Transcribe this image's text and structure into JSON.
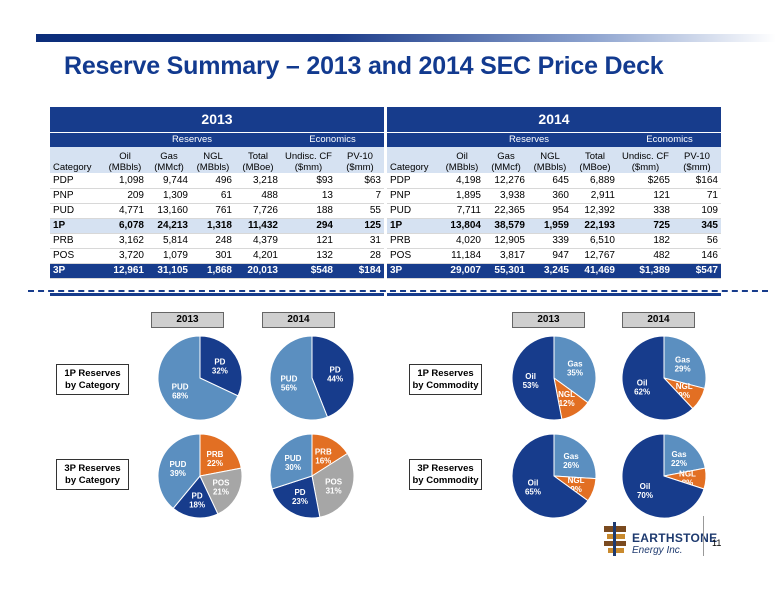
{
  "title": "Reserve Summary – 2013 and 2014 SEC Price Deck",
  "tables": [
    {
      "year": "2013",
      "group_reserves": "Reserves",
      "group_economics": "Economics",
      "headers": [
        [
          "",
          "Category"
        ],
        [
          "Oil",
          "(MBbls)"
        ],
        [
          "Gas",
          "(MMcf)"
        ],
        [
          "NGL",
          "(MBbls)"
        ],
        [
          "Total",
          "(MBoe)"
        ],
        [
          "Undisc. CF",
          "($mm)"
        ],
        [
          "PV-10",
          "($mm)"
        ]
      ],
      "rows": [
        [
          "PDP",
          "1,098",
          "9,744",
          "496",
          "3,218",
          "$93",
          "$63"
        ],
        [
          "PNP",
          "209",
          "1,309",
          "61",
          "488",
          "13",
          "7"
        ],
        [
          "PUD",
          "4,771",
          "13,160",
          "761",
          "7,726",
          "188",
          "55"
        ],
        [
          "1P",
          "6,078",
          "24,213",
          "1,318",
          "11,432",
          "294",
          "125"
        ],
        [
          "PRB",
          "3,162",
          "5,814",
          "248",
          "4,379",
          "121",
          "31"
        ],
        [
          "POS",
          "3,720",
          "1,079",
          "301",
          "4,201",
          "132",
          "28"
        ],
        [
          "3P",
          "12,961",
          "31,105",
          "1,868",
          "20,013",
          "$548",
          "$184"
        ]
      ]
    },
    {
      "year": "2014",
      "group_reserves": "Reserves",
      "group_economics": "Economics",
      "headers": [
        [
          "",
          "Category"
        ],
        [
          "Oil",
          "(MBbls)"
        ],
        [
          "Gas",
          "(MMcf)"
        ],
        [
          "NGL",
          "(MBbls)"
        ],
        [
          "Total",
          "(MBoe)"
        ],
        [
          "Undisc. CF",
          "($mm)"
        ],
        [
          "PV-10",
          "($mm)"
        ]
      ],
      "rows": [
        [
          "PDP",
          "4,198",
          "12,276",
          "645",
          "6,889",
          "$265",
          "$164"
        ],
        [
          "PNP",
          "1,895",
          "3,938",
          "360",
          "2,911",
          "121",
          "71"
        ],
        [
          "PUD",
          "7,711",
          "22,365",
          "954",
          "12,392",
          "338",
          "109"
        ],
        [
          "1P",
          "13,804",
          "38,579",
          "1,959",
          "22,193",
          "725",
          "345"
        ],
        [
          "PRB",
          "4,020",
          "12,905",
          "339",
          "6,510",
          "182",
          "56"
        ],
        [
          "POS",
          "11,184",
          "3,817",
          "947",
          "12,767",
          "482",
          "146"
        ],
        [
          "3P",
          "29,007",
          "55,301",
          "3,245",
          "41,469",
          "$1,389",
          "$547"
        ]
      ]
    }
  ],
  "year_labels": [
    "2013",
    "2014",
    "2013",
    "2014"
  ],
  "side_labels": [
    [
      "1P Reserves",
      "by Category"
    ],
    [
      "3P Reserves",
      "by Category"
    ],
    [
      "1P Reserves",
      "by Commodity"
    ],
    [
      "3P Reserves",
      "by Commodity"
    ]
  ],
  "colors": {
    "navy": "#173c8c",
    "steel": "#5b8fc0",
    "orange": "#e26f23",
    "gray": "#a6a6a6"
  },
  "chart_data": [
    {
      "type": "pie",
      "title": "",
      "group": "1P Reserves by Category",
      "year": "2013",
      "slices": [
        {
          "label": "PD",
          "value": 32,
          "pct": "32%",
          "color": "#173c8c"
        },
        {
          "label": "PUD",
          "value": 68,
          "pct": "68%",
          "color": "#5b8fc0"
        }
      ]
    },
    {
      "type": "pie",
      "title": "",
      "group": "1P Reserves by Category",
      "year": "2014",
      "slices": [
        {
          "label": "PD",
          "value": 44,
          "pct": "44%",
          "color": "#173c8c"
        },
        {
          "label": "PUD",
          "value": 56,
          "pct": "56%",
          "color": "#5b8fc0"
        }
      ]
    },
    {
      "type": "pie",
      "title": "",
      "group": "3P Reserves by Category",
      "year": "2013",
      "slices": [
        {
          "label": "PRB",
          "value": 22,
          "pct": "22%",
          "color": "#e26f23"
        },
        {
          "label": "POS",
          "value": 21,
          "pct": "21%",
          "color": "#a6a6a6"
        },
        {
          "label": "PD",
          "value": 18,
          "pct": "18%",
          "color": "#173c8c"
        },
        {
          "label": "PUD",
          "value": 39,
          "pct": "39%",
          "color": "#5b8fc0"
        }
      ]
    },
    {
      "type": "pie",
      "title": "",
      "group": "3P Reserves by Category",
      "year": "2014",
      "slices": [
        {
          "label": "PRB",
          "value": 16,
          "pct": "16%",
          "color": "#e26f23"
        },
        {
          "label": "POS",
          "value": 31,
          "pct": "31%",
          "color": "#a6a6a6"
        },
        {
          "label": "PD",
          "value": 23,
          "pct": "23%",
          "color": "#173c8c"
        },
        {
          "label": "PUD",
          "value": 30,
          "pct": "30%",
          "color": "#5b8fc0"
        }
      ]
    },
    {
      "type": "pie",
      "title": "",
      "group": "1P Reserves by Commodity",
      "year": "2013",
      "slices": [
        {
          "label": "Gas",
          "value": 35,
          "pct": "35%",
          "color": "#5b8fc0"
        },
        {
          "label": "NGL",
          "value": 12,
          "pct": "12%",
          "color": "#e26f23"
        },
        {
          "label": "Oil",
          "value": 53,
          "pct": "53%",
          "color": "#173c8c"
        }
      ]
    },
    {
      "type": "pie",
      "title": "",
      "group": "1P Reserves by Commodity",
      "year": "2014",
      "slices": [
        {
          "label": "Gas",
          "value": 29,
          "pct": "29%",
          "color": "#5b8fc0"
        },
        {
          "label": "NGL",
          "value": 9,
          "pct": "9%",
          "color": "#e26f23"
        },
        {
          "label": "Oil",
          "value": 62,
          "pct": "62%",
          "color": "#173c8c"
        }
      ]
    },
    {
      "type": "pie",
      "title": "",
      "group": "3P Reserves by Commodity",
      "year": "2013",
      "slices": [
        {
          "label": "Gas",
          "value": 26,
          "pct": "26%",
          "color": "#5b8fc0"
        },
        {
          "label": "NGL",
          "value": 9,
          "pct": "9%",
          "color": "#e26f23"
        },
        {
          "label": "Oil",
          "value": 65,
          "pct": "65%",
          "color": "#173c8c"
        }
      ]
    },
    {
      "type": "pie",
      "title": "",
      "group": "3P Reserves by Commodity",
      "year": "2014",
      "slices": [
        {
          "label": "Gas",
          "value": 22,
          "pct": "22%",
          "color": "#5b8fc0"
        },
        {
          "label": "NGL",
          "value": 8,
          "pct": "8%",
          "color": "#e26f23"
        },
        {
          "label": "Oil",
          "value": 70,
          "pct": "70%",
          "color": "#173c8c"
        }
      ]
    }
  ],
  "logo": {
    "name": "EARTHSTONE",
    "sub": "Energy Inc."
  },
  "page_number": "11"
}
